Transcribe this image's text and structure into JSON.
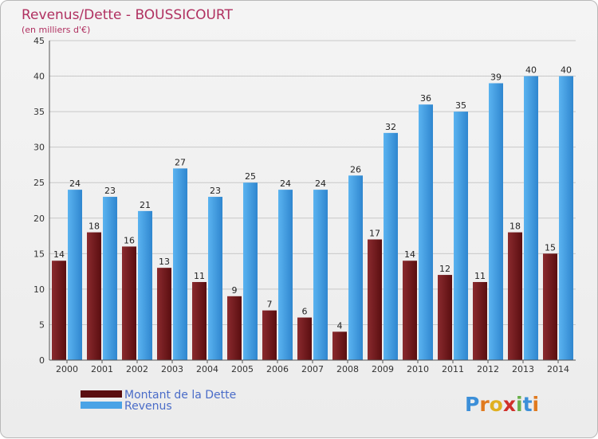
{
  "chart_data": {
    "type": "bar",
    "title": "Revenus/Dette - BOUSSICOURT",
    "subtitle": "(en milliers d'€)",
    "categories": [
      "2000",
      "2001",
      "2002",
      "2003",
      "2004",
      "2005",
      "2006",
      "2007",
      "2008",
      "2009",
      "2010",
      "2011",
      "2012",
      "2013",
      "2014"
    ],
    "series": [
      {
        "name": "Montant de la Dette",
        "color": "#7a1e22",
        "values": [
          14,
          18,
          16,
          13,
          11,
          9,
          7,
          6,
          4,
          17,
          14,
          12,
          11,
          18,
          15
        ]
      },
      {
        "name": "Revenus",
        "color": "#4aa3e6",
        "values": [
          24,
          23,
          21,
          27,
          23,
          25,
          24,
          24,
          26,
          32,
          36,
          35,
          39,
          40,
          40
        ]
      }
    ],
    "ylim": [
      0,
      45
    ],
    "yticks": [
      0,
      5,
      10,
      15,
      20,
      25,
      30,
      35,
      40,
      45
    ],
    "grid": true,
    "legend": "bottom-left"
  },
  "brand": {
    "name": "Proxiti"
  }
}
